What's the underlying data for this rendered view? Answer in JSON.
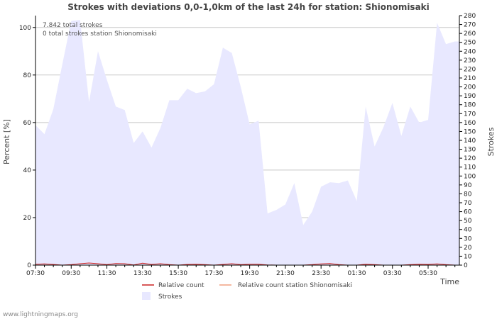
{
  "chart_data": {
    "type": "area",
    "title": "Strokes with deviations 0,0-1,0km of the last 24h for station: Shionomisaki",
    "xlabel": "Time",
    "ylabel_left": "Percent   [%]",
    "ylabel_right": "Strokes",
    "ylim_left": [
      0,
      105
    ],
    "ylim_right": [
      0,
      280
    ],
    "x_range": [
      0,
      47.5
    ],
    "yticks_left": [
      "0",
      "20",
      "40",
      "60",
      "80",
      "100"
    ],
    "yticks_right": [
      "0",
      "10",
      "20",
      "30",
      "40",
      "50",
      "60",
      "70",
      "80",
      "90",
      "100",
      "110",
      "120",
      "130",
      "140",
      "150",
      "160",
      "170",
      "180",
      "190",
      "200",
      "210",
      "220",
      "230",
      "240",
      "250",
      "260",
      "270",
      "280"
    ],
    "xticks": [
      "07:30",
      "09:30",
      "11:30",
      "13:30",
      "15:30",
      "17:30",
      "19:30",
      "21:30",
      "23:30",
      "01:30",
      "03:30",
      "05:30"
    ],
    "annotations": [
      "7.842 total strokes",
      "0 total strokes station Shionomisaki"
    ],
    "legend": [
      "Relative count",
      "Relative count station Shionomisaki",
      "Strokes"
    ],
    "series": [
      {
        "name": "Strokes",
        "axis": "right",
        "x": [
          0,
          1,
          2,
          3,
          4,
          5,
          6,
          7,
          8,
          9,
          10,
          11,
          12,
          13,
          14,
          15,
          16,
          17,
          18,
          19,
          20,
          21,
          22,
          23,
          24,
          25,
          26,
          27,
          28,
          29,
          30,
          31,
          32,
          33,
          34,
          35,
          36,
          37,
          38,
          39,
          40,
          41,
          42,
          43,
          44,
          45,
          46,
          47,
          47.5
        ],
        "values": [
          157,
          147,
          175,
          225,
          274,
          275,
          183,
          240,
          208,
          178,
          174,
          137,
          150,
          132,
          154,
          185,
          185,
          198,
          193,
          195,
          203,
          244,
          238,
          200,
          158,
          162,
          58,
          62,
          68,
          92,
          45,
          60,
          88,
          93,
          92,
          95,
          72,
          178,
          133,
          155,
          182,
          145,
          178,
          160,
          163,
          272,
          248,
          251,
          251
        ]
      },
      {
        "name": "Relative count",
        "axis": "left",
        "x": [
          0,
          1,
          2,
          3,
          4,
          5,
          6,
          7,
          8,
          9,
          10,
          11,
          12,
          13,
          14,
          15,
          16,
          17,
          18,
          19,
          20,
          21,
          22,
          23,
          24,
          25,
          26,
          27,
          28,
          29,
          30,
          31,
          32,
          33,
          34,
          35,
          36,
          37,
          38,
          39,
          40,
          41,
          42,
          43,
          44,
          45,
          46,
          47,
          47.5
        ],
        "values": [
          0.4,
          0.5,
          0.3,
          0,
          0.2,
          0.6,
          0.9,
          0.6,
          0.2,
          0.7,
          0.6,
          0.1,
          0.8,
          0.3,
          0.6,
          0.2,
          0,
          0.3,
          0.4,
          0.2,
          0,
          0.3,
          0.6,
          0.2,
          0.4,
          0.4,
          0.1,
          0,
          0,
          0,
          0,
          0.2,
          0.5,
          0.7,
          0.2,
          0,
          0,
          0.4,
          0.2,
          0,
          0,
          0,
          0.2,
          0.4,
          0.3,
          0.5,
          0.2,
          0,
          0
        ]
      },
      {
        "name": "Relative count station Shionomisaki",
        "axis": "left",
        "x": [
          0,
          47.5
        ],
        "values": [
          0,
          0
        ]
      }
    ],
    "colors": {
      "strokes_fill": "#e8e8ff",
      "relative": "#cc2222",
      "station": "#f0a080",
      "grid": "#c8c8c8",
      "axis": "#000000"
    }
  },
  "footer": "www.lightningmaps.org"
}
